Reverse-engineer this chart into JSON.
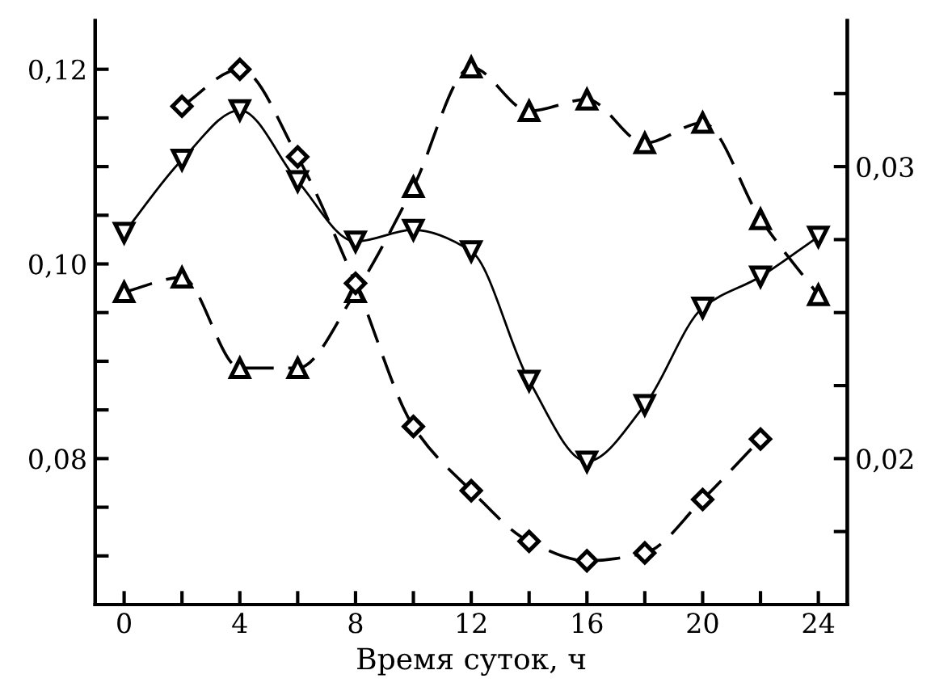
{
  "chart_data": {
    "type": "line",
    "xlabel": "Время суток, ч",
    "xlim": [
      -1,
      25
    ],
    "xticks": [
      0,
      {
        "value": 2,
        "label": null
      },
      4,
      {
        "value": 6,
        "label": null
      },
      8,
      {
        "value": 10,
        "label": null
      },
      12,
      {
        "value": 14,
        "label": null
      },
      16,
      {
        "value": 18,
        "label": null
      },
      20,
      {
        "value": 22,
        "label": null
      },
      24
    ],
    "ylim": [
      0.065,
      0.125
    ],
    "yticks": [
      {
        "value": 0.07,
        "label": null
      },
      {
        "value": 0.075,
        "label": null
      },
      {
        "value": 0.08,
        "label": "0,08"
      },
      {
        "value": 0.085,
        "label": null
      },
      {
        "value": 0.09,
        "label": null
      },
      {
        "value": 0.095,
        "label": null
      },
      {
        "value": 0.1,
        "label": "0,10"
      },
      {
        "value": 0.105,
        "label": null
      },
      {
        "value": 0.11,
        "label": null
      },
      {
        "value": 0.115,
        "label": null
      },
      {
        "value": 0.12,
        "label": "0,12"
      }
    ],
    "y2lim": [
      0.015,
      0.035
    ],
    "y2ticks": [
      {
        "value": 0.0175,
        "label": null
      },
      {
        "value": 0.02,
        "label": "0,02"
      },
      {
        "value": 0.0225,
        "label": null
      },
      {
        "value": 0.025,
        "label": null
      },
      {
        "value": 0.0275,
        "label": null
      },
      {
        "value": 0.03,
        "label": "0,03"
      },
      {
        "value": 0.0325,
        "label": null
      }
    ],
    "grid": false,
    "series": [
      {
        "color": "#000000",
        "marker": "diamond",
        "line_style": "dashed",
        "x": [
          2,
          4,
          6,
          8,
          10,
          12,
          14,
          16,
          18,
          20,
          22
        ],
        "values": [
          0.1162,
          0.12,
          0.111,
          0.098,
          0.0833,
          0.0767,
          0.0715,
          0.0695,
          0.0703,
          0.0758,
          0.082
        ]
      },
      {
        "color": "#000000",
        "marker": "triangle_down",
        "line_style": "solid",
        "x": [
          0,
          2,
          4,
          6,
          8,
          10,
          12,
          14,
          16,
          18,
          20,
          22,
          24
        ],
        "values": [
          0.1032,
          0.1107,
          0.1158,
          0.1085,
          0.1023,
          0.1035,
          0.1013,
          0.088,
          0.0797,
          0.0855,
          0.0955,
          0.0987,
          0.1028
        ]
      },
      {
        "color": "#000000",
        "marker": "triangle",
        "line_style": "dashed",
        "axis": "y2",
        "x": [
          0,
          2,
          4,
          6,
          8,
          10,
          12,
          14,
          16,
          18,
          20,
          22,
          24
        ],
        "values": [
          0.0257,
          0.0262,
          0.0231,
          0.0231,
          0.0257,
          0.0293,
          0.0334,
          0.0319,
          0.0323,
          0.0308,
          0.0315,
          0.0282,
          0.0256
        ]
      }
    ]
  }
}
